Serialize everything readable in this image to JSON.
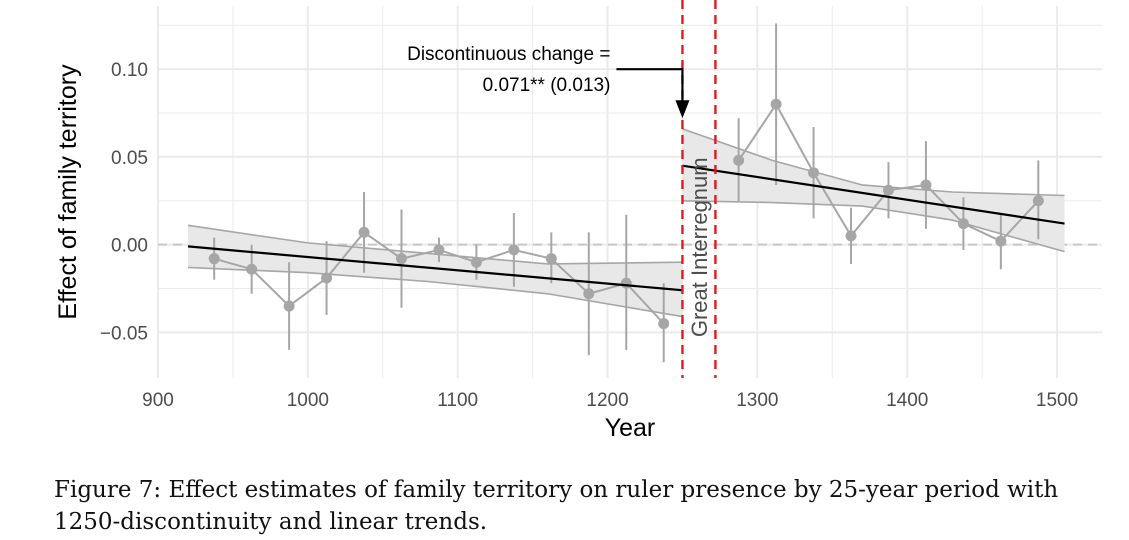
{
  "chart_data": {
    "type": "scatter",
    "xlabel": "Year",
    "ylabel": "Effect of family territory",
    "xlim": [
      900,
      1530
    ],
    "ylim": [
      -0.076,
      0.136
    ],
    "x_ticks": [
      900,
      1000,
      1100,
      1200,
      1300,
      1400,
      1500
    ],
    "y_ticks": [
      -0.05,
      0.0,
      0.05,
      0.1
    ],
    "y_tick_labels": [
      "−0.05",
      "0.00",
      "0.05",
      "0.10"
    ],
    "grid": true,
    "reference_line_y": 0,
    "points": [
      {
        "x": 937.5,
        "y": -0.008,
        "lo": -0.02,
        "hi": 0.004
      },
      {
        "x": 962.5,
        "y": -0.014,
        "lo": -0.028,
        "hi": 0.0
      },
      {
        "x": 987.5,
        "y": -0.035,
        "lo": -0.06,
        "hi": -0.01
      },
      {
        "x": 1012.5,
        "y": -0.019,
        "lo": -0.04,
        "hi": 0.002
      },
      {
        "x": 1037.5,
        "y": 0.007,
        "lo": -0.016,
        "hi": 0.03
      },
      {
        "x": 1062.5,
        "y": -0.008,
        "lo": -0.036,
        "hi": 0.02
      },
      {
        "x": 1087.5,
        "y": -0.003,
        "lo": -0.01,
        "hi": 0.004
      },
      {
        "x": 1112.5,
        "y": -0.01,
        "lo": -0.02,
        "hi": 0.0
      },
      {
        "x": 1137.5,
        "y": -0.003,
        "lo": -0.024,
        "hi": 0.018
      },
      {
        "x": 1162.5,
        "y": -0.008,
        "lo": -0.022,
        "hi": 0.007
      },
      {
        "x": 1187.5,
        "y": -0.028,
        "lo": -0.063,
        "hi": 0.007
      },
      {
        "x": 1212.5,
        "y": -0.022,
        "lo": -0.06,
        "hi": 0.017
      },
      {
        "x": 1237.5,
        "y": -0.045,
        "lo": -0.067,
        "hi": -0.022
      },
      {
        "x": 1287.5,
        "y": 0.048,
        "lo": 0.024,
        "hi": 0.072
      },
      {
        "x": 1312.5,
        "y": 0.08,
        "lo": 0.034,
        "hi": 0.126
      },
      {
        "x": 1337.5,
        "y": 0.041,
        "lo": 0.015,
        "hi": 0.067
      },
      {
        "x": 1362.5,
        "y": 0.005,
        "lo": -0.011,
        "hi": 0.021
      },
      {
        "x": 1387.5,
        "y": 0.031,
        "lo": 0.015,
        "hi": 0.047
      },
      {
        "x": 1412.5,
        "y": 0.034,
        "lo": 0.009,
        "hi": 0.059
      },
      {
        "x": 1437.5,
        "y": 0.012,
        "lo": -0.003,
        "hi": 0.027
      },
      {
        "x": 1462.5,
        "y": 0.002,
        "lo": -0.014,
        "hi": 0.018
      },
      {
        "x": 1487.5,
        "y": 0.025,
        "lo": 0.003,
        "hi": 0.048
      }
    ],
    "trend_lines": [
      {
        "x": [
          920,
          1250
        ],
        "y": [
          -0.001,
          -0.026
        ],
        "band_x": [
          920,
          1000,
          1080,
          1160,
          1250
        ],
        "band_lo": [
          -0.013,
          -0.016,
          -0.021,
          -0.028,
          -0.041
        ],
        "band_hi": [
          0.011,
          0.001,
          -0.005,
          -0.011,
          -0.01
        ]
      },
      {
        "x": [
          1250,
          1505
        ],
        "y": [
          0.045,
          0.012
        ],
        "band_x": [
          1250,
          1310,
          1370,
          1430,
          1505
        ],
        "band_lo": [
          0.025,
          0.024,
          0.022,
          0.014,
          -0.004
        ],
        "band_hi": [
          0.066,
          0.048,
          0.034,
          0.03,
          0.028
        ]
      }
    ],
    "vertical_lines": [
      1250,
      1272
    ],
    "shaded_label": "Great Interregnum",
    "annotation": {
      "line1": "Discontinuous change =",
      "line2": "0.071** (0.013)",
      "arrow_target": {
        "x": 1250,
        "y": 0.072
      },
      "arrow_elbow": {
        "x": 1250,
        "y": 0.1
      }
    },
    "colors": {
      "points": "#a6a6a6",
      "trend": "#000000",
      "band_fill": "#e8e8e8",
      "band_edge": "#a6a6a6",
      "vline": "#e31a1c",
      "grid": "#ebebeb",
      "zero_line": "#c8c8c8",
      "interregnum_text": "#d3d3d3"
    }
  },
  "caption": "Figure 7: Effect estimates of family territory on ruler presence by 25-year period with 1250-discontinuity and linear trends."
}
